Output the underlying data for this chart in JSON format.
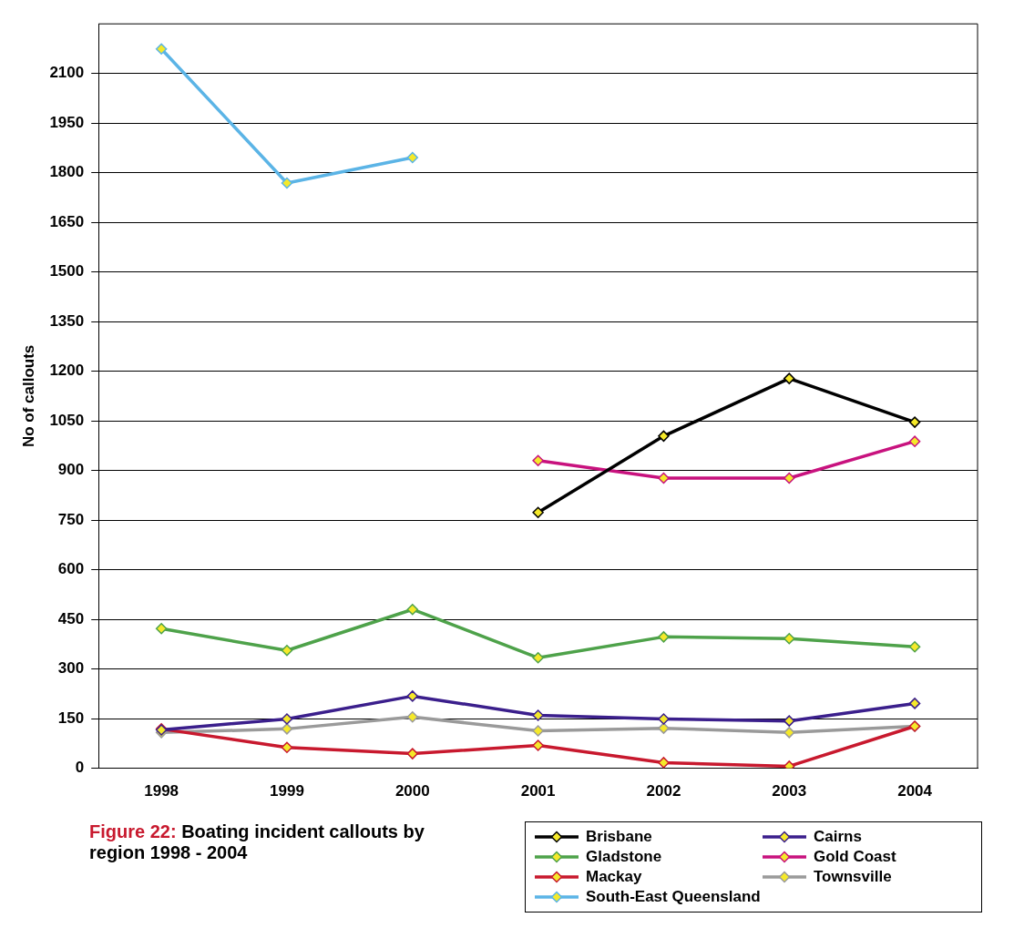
{
  "chart_data": {
    "type": "line",
    "title": "Figure 22: Boating incident callouts by region 1998 - 2004",
    "ylabel": "No of callouts",
    "categories": [
      "1998",
      "1999",
      "2000",
      "2001",
      "2002",
      "2003",
      "2004"
    ],
    "series": [
      {
        "name": "Brisbane",
        "color": "#000000",
        "values": [
          null,
          null,
          null,
          773,
          1004,
          1178,
          1046
        ]
      },
      {
        "name": "Cairns",
        "color": "#3b1f8c",
        "values": [
          116,
          149,
          218,
          160,
          149,
          143,
          196
        ]
      },
      {
        "name": "Gladstone",
        "color": "#4ea24a",
        "values": [
          422,
          356,
          480,
          334,
          397,
          392,
          367
        ]
      },
      {
        "name": "Gold Coast",
        "color": "#c8127e",
        "values": [
          null,
          null,
          null,
          930,
          877,
          877,
          988
        ]
      },
      {
        "name": "Mackay",
        "color": "#c8192e",
        "values": [
          119,
          63,
          44,
          69,
          17,
          6,
          127
        ]
      },
      {
        "name": "Townsville",
        "color": "#9a9a9a",
        "values": [
          108,
          119,
          155,
          113,
          121,
          108,
          127
        ]
      },
      {
        "name": "South-East Queensland",
        "color": "#5bb4e6",
        "values": [
          2174,
          1769,
          1846,
          null,
          null,
          null,
          null
        ]
      }
    ],
    "ylim": [
      0,
      2250
    ],
    "yticks": [
      0,
      150,
      300,
      450,
      600,
      750,
      900,
      1050,
      1200,
      1350,
      1500,
      1650,
      1800,
      1950,
      2100
    ],
    "grid": "y",
    "marker": "diamond",
    "line_style": "solid",
    "legend": "bottom right"
  }
}
